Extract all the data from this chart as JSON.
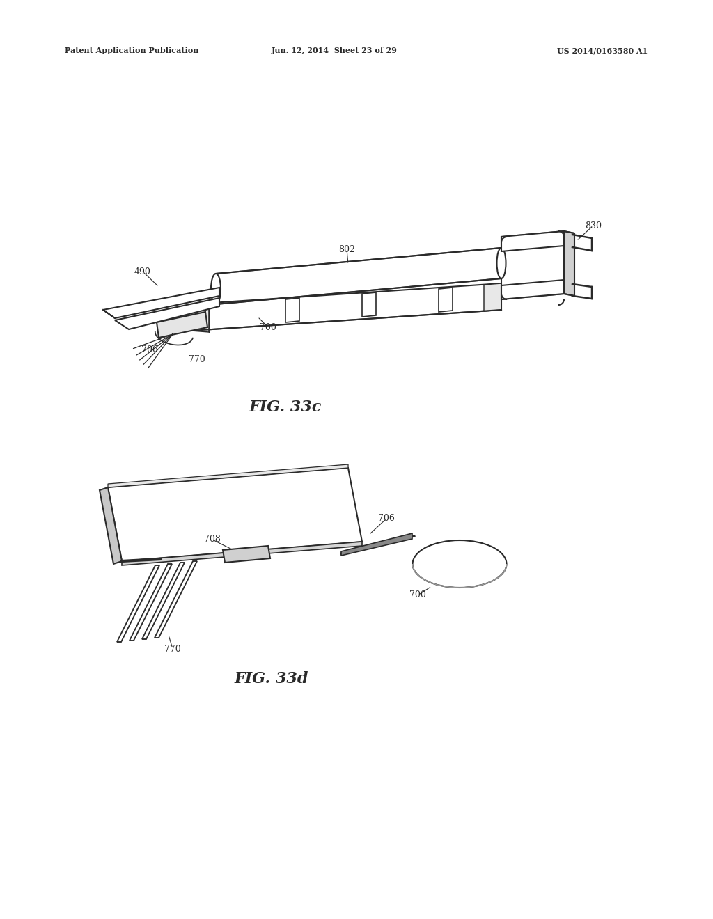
{
  "background_color": "#ffffff",
  "header_left": "Patent Application Publication",
  "header_mid": "Jun. 12, 2014  Sheet 23 of 29",
  "header_right": "US 2014/0163580 A1",
  "fig1_label": "FIG. 33c",
  "fig2_label": "FIG. 33d",
  "lc": "#2a2a2a",
  "lw": 1.5
}
